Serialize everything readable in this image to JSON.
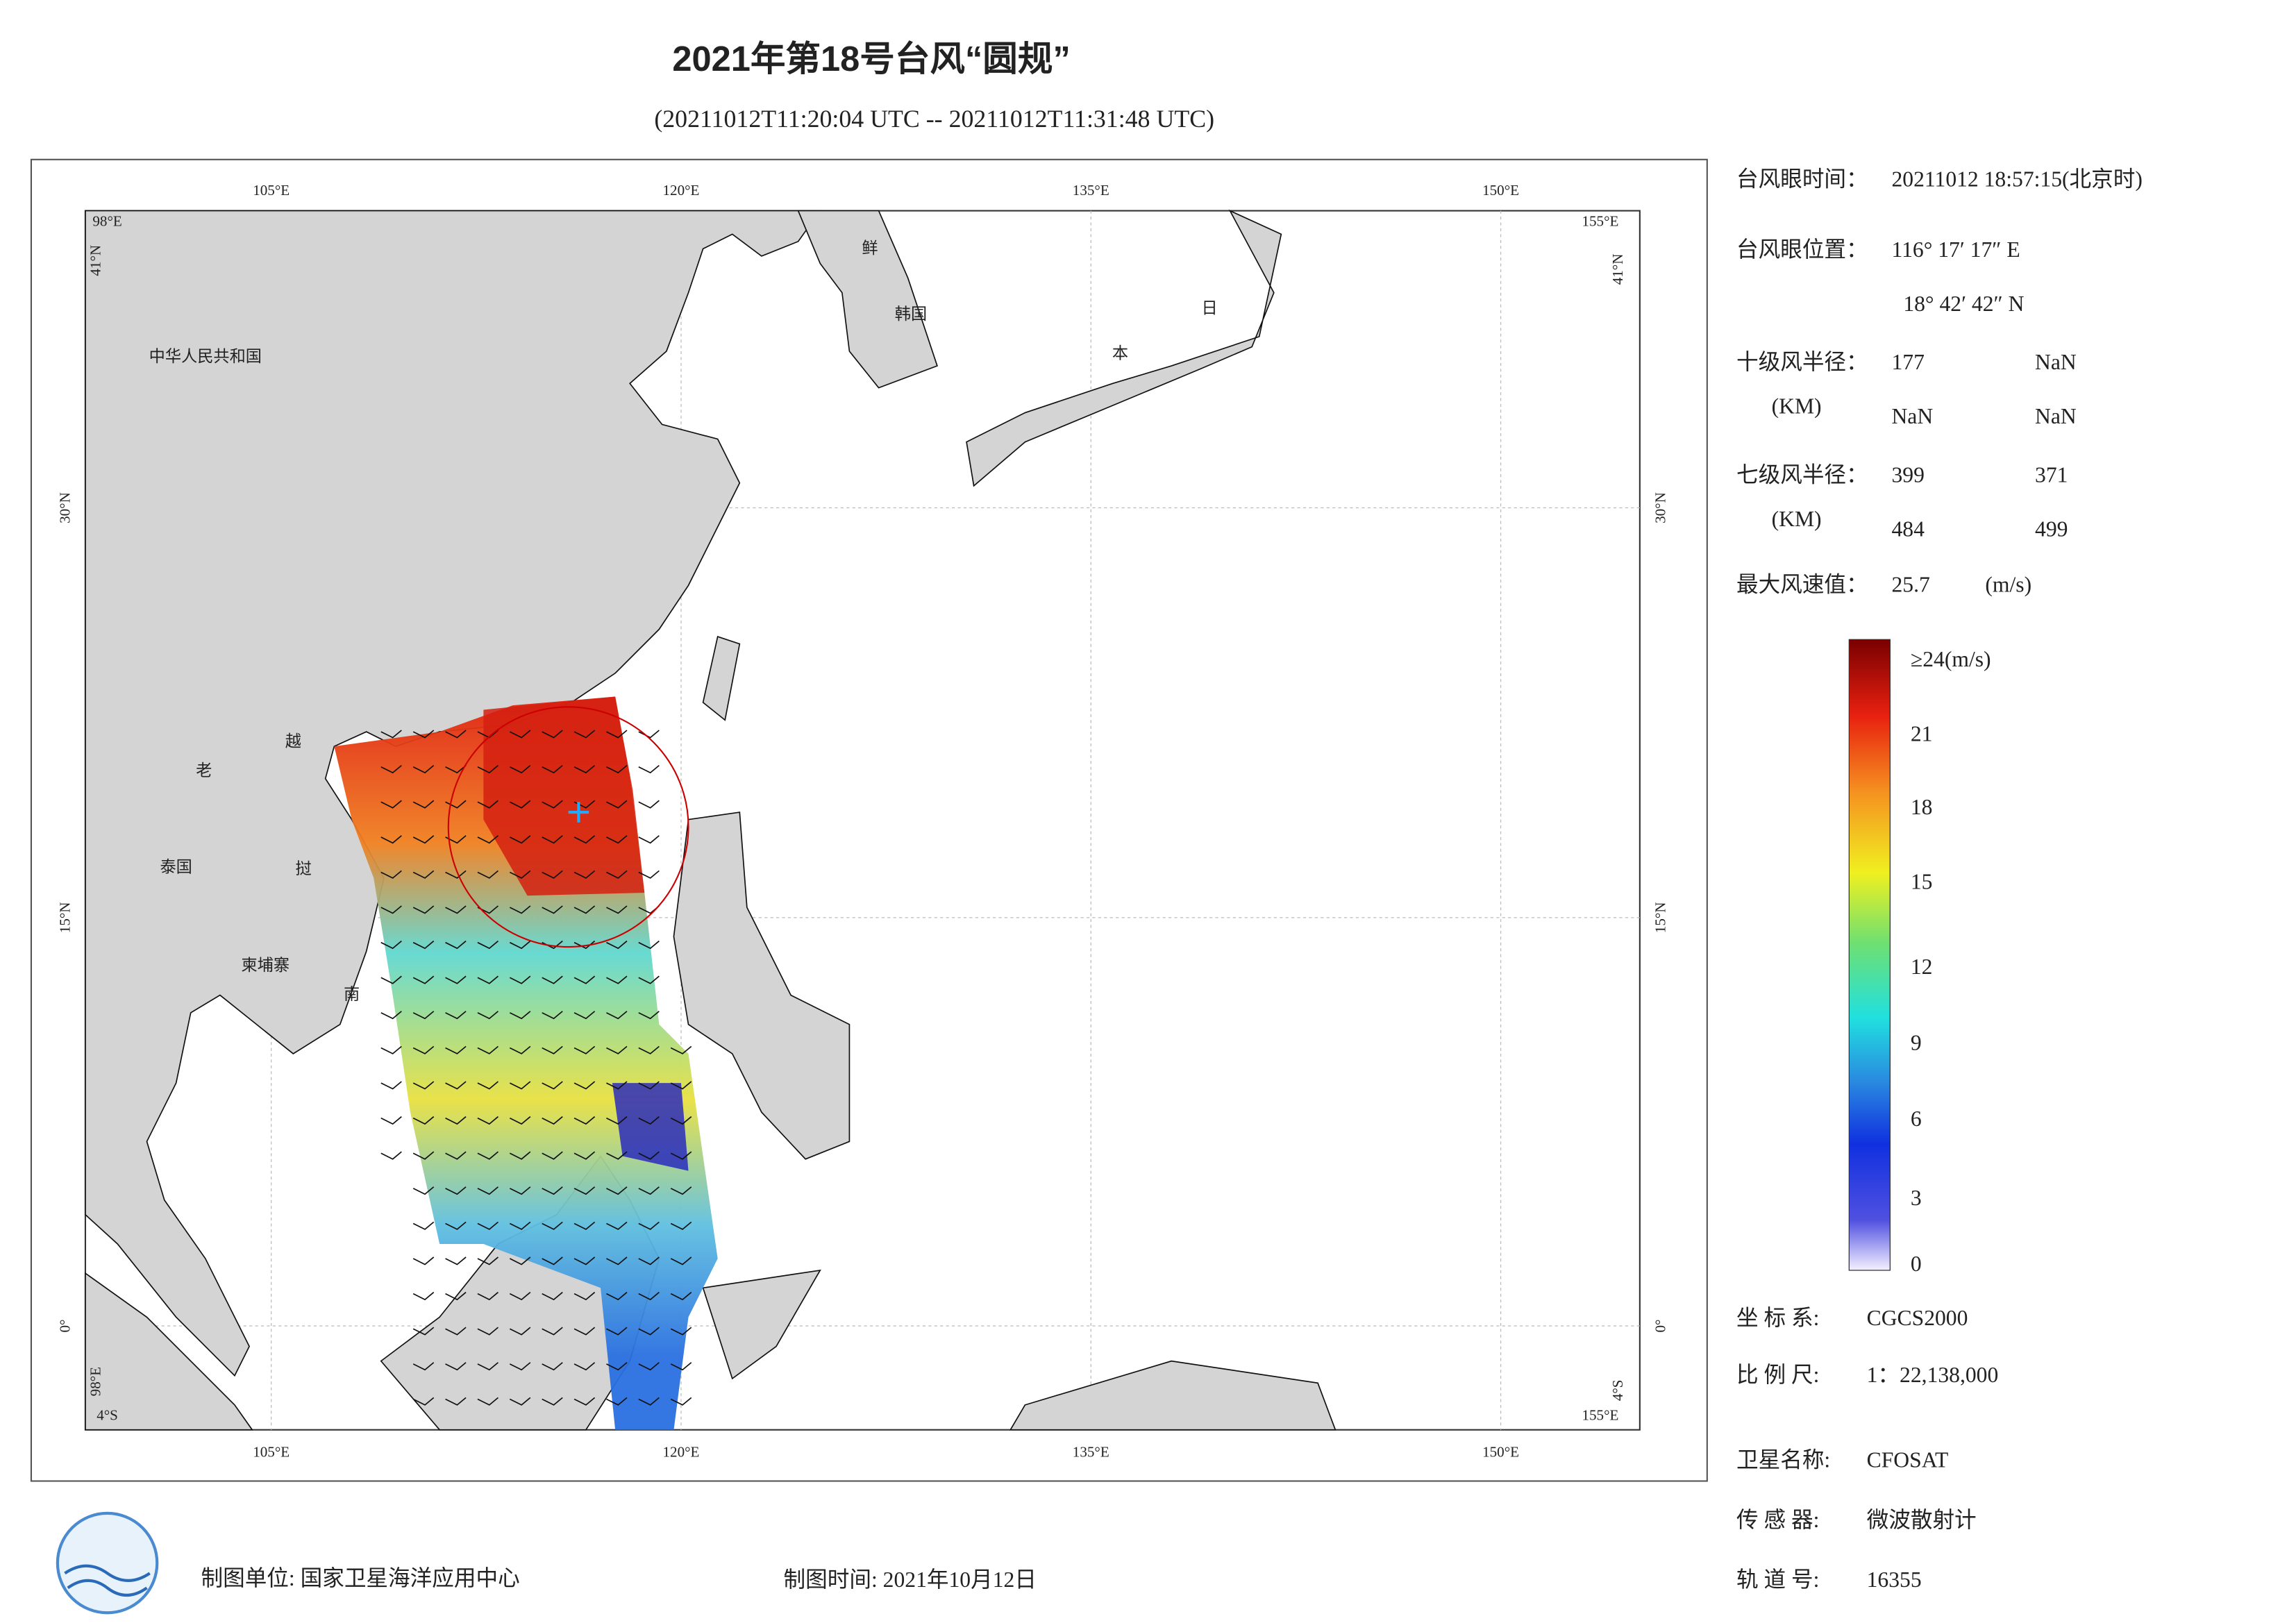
{
  "header": {
    "title": "2021年第18号台风“圆规”",
    "subtitle": "(20211012T11:20:04 UTC -- 20211012T11:31:48 UTC)"
  },
  "map": {
    "lon_labels": [
      "105°E",
      "120°E",
      "135°E",
      "150°E"
    ],
    "lat_labels": [
      "30°N",
      "15°N",
      "0°"
    ],
    "corner_labels": [
      "98°E",
      "41°N",
      "155°E",
      "41°N",
      "4°S",
      "98°E",
      "155°E",
      "4°S"
    ],
    "places": [
      "中华人民共和国",
      "鲜",
      "韩国",
      "日",
      "本",
      "老",
      "越",
      "泰国",
      "挝",
      "柬埔寨",
      "南"
    ]
  },
  "info": {
    "eye_time": {
      "label": "台风眼时间：",
      "value": "20211012 18:57:15(北京时)"
    },
    "eye_position": {
      "label": "台风眼位置：",
      "lon": "116° 17′ 17″ E",
      "lat": "18° 42′ 42″ N"
    },
    "radius_10": {
      "label": "十级风半径：",
      "unit": "(KM)",
      "values": [
        177,
        "NaN",
        "NaN",
        "NaN"
      ]
    },
    "radius_7": {
      "label": "七级风半径：",
      "unit": "(KM)",
      "values": [
        399,
        371,
        484,
        499
      ]
    },
    "max_wind": {
      "label": "最大风速值：",
      "value": 25.7,
      "unit": "(m/s)"
    },
    "colorbar": [
      "≥24(m/s)",
      21,
      18,
      15,
      12,
      9,
      6,
      3,
      0
    ],
    "coordinate_system": {
      "label": "坐 标 系:",
      "value": "CGCS2000"
    },
    "scale": {
      "label": "比 例 尺:",
      "value": "1：22,138,000"
    },
    "satellite": {
      "label": "卫星名称:",
      "value": "CFOSAT"
    },
    "sensor": {
      "label": "传 感 器:",
      "value": "微波散射计"
    },
    "orbit": {
      "label": "轨 道 号:",
      "value": 16355
    }
  },
  "footer": {
    "producer": "制图单位: 国家卫星海洋应用中心",
    "date": "制图时间: 2021年10月12日"
  }
}
